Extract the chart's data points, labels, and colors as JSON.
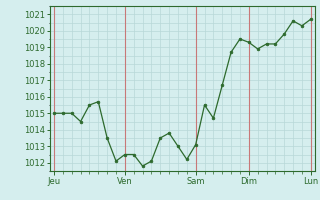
{
  "y_values": [
    1015,
    1015,
    1015,
    1014.5,
    1015.5,
    1015.7,
    1013.5,
    1012.1,
    1012.5,
    1012.5,
    1011.8,
    1012.1,
    1013.5,
    1013.8,
    1013.0,
    1012.2,
    1013.1,
    1015.5,
    1014.7,
    1016.7,
    1018.7,
    1019.5,
    1019.3,
    1018.9,
    1019.2,
    1019.2,
    1019.8,
    1020.6,
    1020.3,
    1020.7
  ],
  "x_tick_positions": [
    0,
    8,
    16,
    22,
    29
  ],
  "x_tick_labels": [
    "Jeu",
    "Ven",
    "Sam",
    "Dim",
    "Lun"
  ],
  "vline_positions": [
    0,
    8,
    16,
    22,
    29
  ],
  "y_min": 1011.5,
  "y_max": 1021.5,
  "y_ticks": [
    1012,
    1013,
    1014,
    1015,
    1016,
    1017,
    1018,
    1019,
    1020,
    1021
  ],
  "bg_color": "#d5eeee",
  "line_color": "#2d6a2d",
  "marker_color": "#2d6a2d",
  "grid_color": "#b8d8d8",
  "vline_color": "#c87878",
  "n_points": 30
}
